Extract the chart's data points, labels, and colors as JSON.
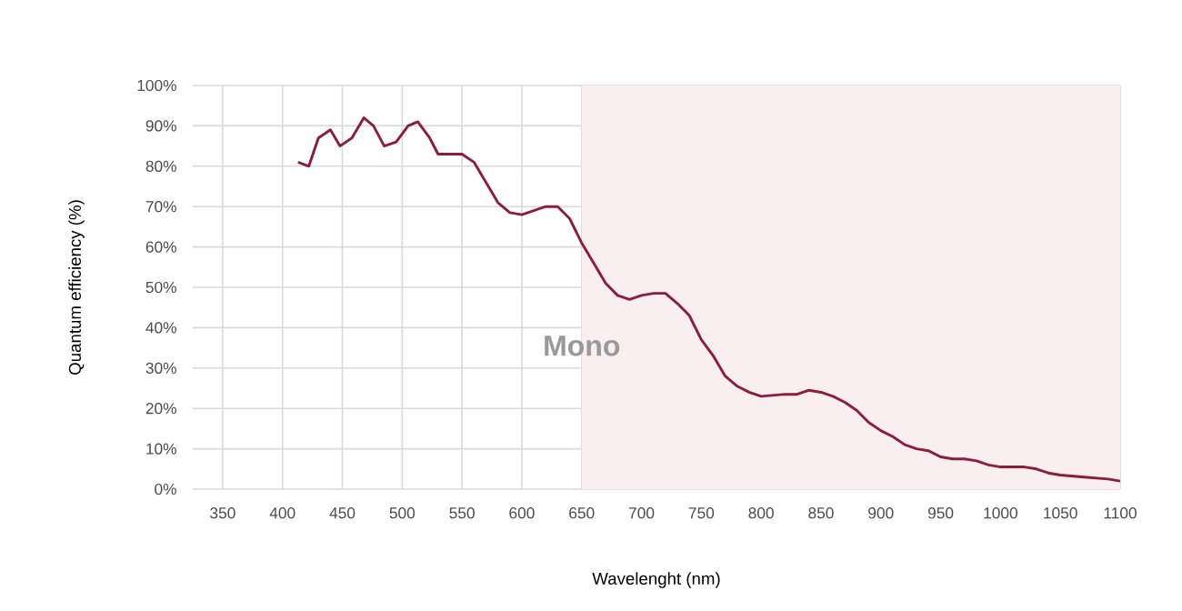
{
  "chart_data": {
    "type": "line",
    "xlabel": "Wavelenght (nm)",
    "ylabel": "Quantum efficiency (%)",
    "xlim": [
      325,
      1100
    ],
    "ylim": [
      0,
      100
    ],
    "xticks": [
      350,
      400,
      450,
      500,
      550,
      600,
      650,
      700,
      750,
      800,
      850,
      900,
      950,
      1000,
      1050,
      1100
    ],
    "yticks": [
      {
        "value": 0,
        "label": "0%"
      },
      {
        "value": 10,
        "label": "10%"
      },
      {
        "value": 20,
        "label": "20%"
      },
      {
        "value": 30,
        "label": "30%"
      },
      {
        "value": 40,
        "label": "40%"
      },
      {
        "value": 50,
        "label": "50%"
      },
      {
        "value": 60,
        "label": "60%"
      },
      {
        "value": 70,
        "label": "70%"
      },
      {
        "value": 80,
        "label": "80%"
      },
      {
        "value": 90,
        "label": "90%"
      },
      {
        "value": 100,
        "label": "100%"
      }
    ],
    "grid": true,
    "marker": "none",
    "line_style": "solid",
    "bands": [
      {
        "axis": "x",
        "from": 650,
        "to": 1100,
        "label": "Mono",
        "color": "#f9efee"
      }
    ],
    "series": [
      {
        "color": "#8b1e3f",
        "x": [
          413,
          422,
          430,
          440,
          448,
          458,
          468,
          476,
          485,
          495,
          505,
          513,
          523,
          530,
          540,
          550,
          560,
          570,
          580,
          590,
          600,
          610,
          620,
          630,
          640,
          650,
          660,
          670,
          680,
          690,
          700,
          710,
          720,
          730,
          740,
          750,
          760,
          770,
          780,
          790,
          800,
          820,
          830,
          840,
          850,
          860,
          870,
          880,
          890,
          900,
          910,
          920,
          930,
          940,
          950,
          960,
          970,
          980,
          990,
          1000,
          1020,
          1030,
          1040,
          1050,
          1070,
          1090,
          1100
        ],
        "values": [
          81,
          80,
          87,
          89,
          85,
          87,
          92,
          90,
          85,
          86,
          90,
          91,
          87,
          83,
          83,
          83,
          81,
          76,
          71,
          68.5,
          68,
          69,
          70,
          70,
          67,
          61,
          56,
          51,
          48,
          47,
          48,
          48.5,
          48.5,
          46,
          43,
          37,
          33,
          28,
          25.5,
          24,
          23,
          23.5,
          23.5,
          24.5,
          24,
          23,
          21.5,
          19.5,
          16.5,
          14.5,
          13,
          11,
          10,
          9.5,
          8,
          7.5,
          7.5,
          7,
          6,
          5.5,
          5.5,
          5,
          4,
          3.5,
          3,
          2.5,
          2
        ]
      }
    ]
  }
}
